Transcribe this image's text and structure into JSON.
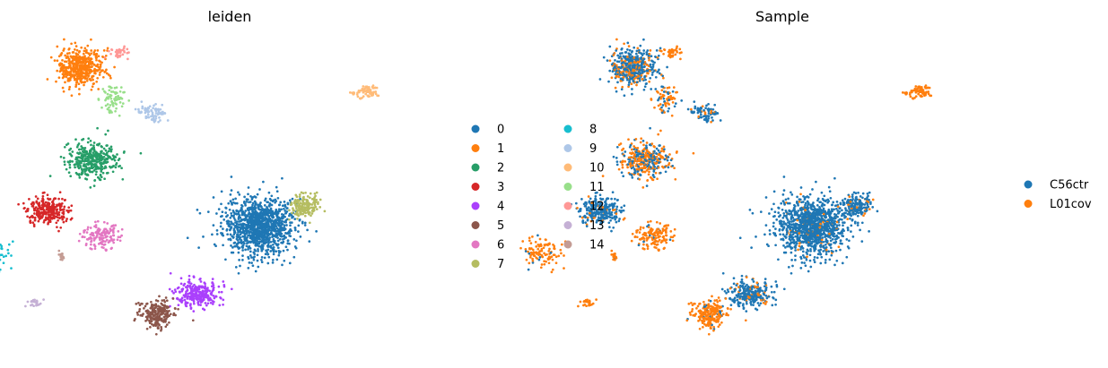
{
  "chart_data": [
    {
      "type": "scatter",
      "title": "leiden",
      "xlabel": "",
      "ylabel": "",
      "axes": "off",
      "grid": false,
      "legend_placement": "right, two columns",
      "legend": [
        {
          "label": "0",
          "color": "#1f77b4"
        },
        {
          "label": "1",
          "color": "#ff7f0e"
        },
        {
          "label": "2",
          "color": "#279e68"
        },
        {
          "label": "3",
          "color": "#d62728"
        },
        {
          "label": "4",
          "color": "#aa40fc"
        },
        {
          "label": "5",
          "color": "#8c564b"
        },
        {
          "label": "6",
          "color": "#e377c2"
        },
        {
          "label": "7",
          "color": "#b5bd61"
        },
        {
          "label": "8",
          "color": "#17becf"
        },
        {
          "label": "9",
          "color": "#aec7e8"
        },
        {
          "label": "10",
          "color": "#ffbb78"
        },
        {
          "label": "11",
          "color": "#98df8a"
        },
        {
          "label": "12",
          "color": "#ff9896"
        },
        {
          "label": "13",
          "color": "#c5b0d5"
        },
        {
          "label": "14",
          "color": "#c49c94"
        }
      ],
      "xlim": [
        0,
        100
      ],
      "ylim": [
        0,
        100
      ],
      "clusters": [
        {
          "label": "0",
          "points": 1150,
          "x": 57.5,
          "y": 38.2,
          "sx": 7.6,
          "sy": 7.9
        },
        {
          "label": "1",
          "points": 480,
          "x": 15.2,
          "y": 87.3,
          "sx": 4.7,
          "sy": 5.6
        },
        {
          "label": "2",
          "points": 360,
          "x": 18.2,
          "y": 58.5,
          "sx": 5.4,
          "sy": 5.1
        },
        {
          "label": "3",
          "points": 280,
          "x": 7.5,
          "y": 43.1,
          "sx": 4.3,
          "sy": 3.8
        },
        {
          "label": "4",
          "points": 260,
          "x": 43.0,
          "y": 17.2,
          "sx": 4.9,
          "sy": 3.6
        },
        {
          "label": "5",
          "points": 230,
          "x": 33.5,
          "y": 10.9,
          "sx": 3.6,
          "sy": 3.9
        },
        {
          "label": "6",
          "points": 150,
          "x": 20.0,
          "y": 35.0,
          "sx": 4.3,
          "sy": 3.3
        },
        {
          "label": "7",
          "points": 160,
          "x": 68.5,
          "y": 44.6,
          "sx": 2.9,
          "sy": 3.9
        },
        {
          "label": "8",
          "points": 110,
          "x": -6.5,
          "y": 29.8,
          "sx": 4.1,
          "sy": 4.9
        },
        {
          "label": "9",
          "points": 80,
          "x": 32.0,
          "y": 73.1,
          "sx": 3.3,
          "sy": 2.2
        },
        {
          "label": "10",
          "points": 70,
          "x": 82.7,
          "y": 79.7,
          "sx": 2.7,
          "sy": 1.8
        },
        {
          "label": "11",
          "points": 70,
          "x": 23.0,
          "y": 78.0,
          "sx": 2.6,
          "sy": 3.9
        },
        {
          "label": "12",
          "points": 40,
          "x": 24.5,
          "y": 91.8,
          "sx": 1.9,
          "sy": 1.6
        },
        {
          "label": "13",
          "points": 25,
          "x": 4.3,
          "y": 14.5,
          "sx": 1.6,
          "sy": 1.2
        },
        {
          "label": "14",
          "points": 15,
          "x": 10.9,
          "y": 28.7,
          "sx": 0.8,
          "sy": 1.2
        }
      ]
    },
    {
      "type": "scatter",
      "title": "Sample",
      "xlabel": "",
      "ylabel": "",
      "axes": "off",
      "grid": false,
      "legend_placement": "right",
      "legend": [
        {
          "label": "C56ctr",
          "color": "#1f77b4"
        },
        {
          "label": "L01cov",
          "color": "#ff7f0e"
        }
      ],
      "xlim": [
        0,
        100
      ],
      "ylim": [
        0,
        100
      ],
      "note_on_layout": ""
    }
  ]
}
